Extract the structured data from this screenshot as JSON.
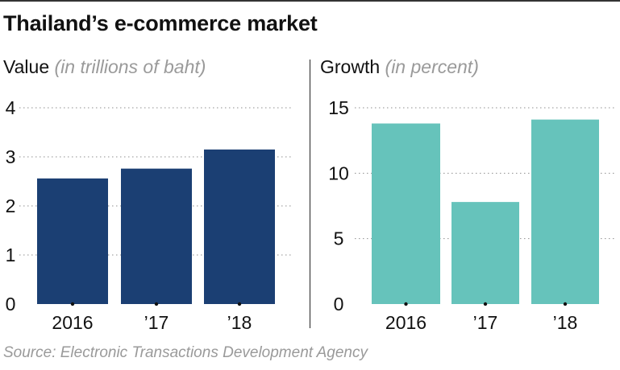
{
  "header": {
    "title": "Thailand’s e-commerce market",
    "source": "Source: Electronic Transactions Development Agency"
  },
  "chart_data": [
    {
      "type": "bar",
      "title": "Value",
      "unit": "(in trillions of baht)",
      "categories": [
        "2016",
        "’17",
        "’18"
      ],
      "values": [
        2.56,
        2.76,
        3.15
      ],
      "ylim": [
        0,
        4
      ],
      "yticks": [
        0,
        1,
        2,
        3,
        4
      ],
      "color": "#1b3f73",
      "grid": true
    },
    {
      "type": "bar",
      "title": "Growth",
      "unit": "(in percent)",
      "categories": [
        "2016",
        "’17",
        "’18"
      ],
      "values": [
        13.8,
        7.8,
        14.1
      ],
      "ylim": [
        0,
        15
      ],
      "yticks": [
        0,
        5,
        10,
        15
      ],
      "color": "#66c3bb",
      "grid": true
    }
  ]
}
